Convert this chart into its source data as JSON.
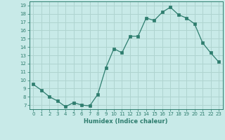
{
  "x": [
    0,
    1,
    2,
    3,
    4,
    5,
    6,
    7,
    8,
    9,
    10,
    11,
    12,
    13,
    14,
    15,
    16,
    17,
    18,
    19,
    20,
    21,
    22,
    23
  ],
  "y": [
    9.5,
    8.8,
    8.0,
    7.5,
    6.8,
    7.3,
    7.0,
    6.9,
    8.3,
    11.5,
    13.8,
    13.3,
    15.3,
    15.3,
    17.5,
    17.2,
    18.2,
    18.8,
    17.9,
    17.5,
    16.8,
    14.5,
    13.3,
    12.2
  ],
  "line_color": "#2e7d6e",
  "marker_color": "#2e7d6e",
  "bg_color": "#c8eae8",
  "grid_color": "#afd4d0",
  "axis_color": "#2e7d6e",
  "tick_label_color": "#2e7d6e",
  "xlabel": "Humidex (Indice chaleur)",
  "xlim": [
    -0.5,
    23.5
  ],
  "ylim": [
    6.5,
    19.5
  ],
  "yticks": [
    7,
    8,
    9,
    10,
    11,
    12,
    13,
    14,
    15,
    16,
    17,
    18,
    19
  ],
  "xticks": [
    0,
    1,
    2,
    3,
    4,
    5,
    6,
    7,
    8,
    9,
    10,
    11,
    12,
    13,
    14,
    15,
    16,
    17,
    18,
    19,
    20,
    21,
    22,
    23
  ]
}
